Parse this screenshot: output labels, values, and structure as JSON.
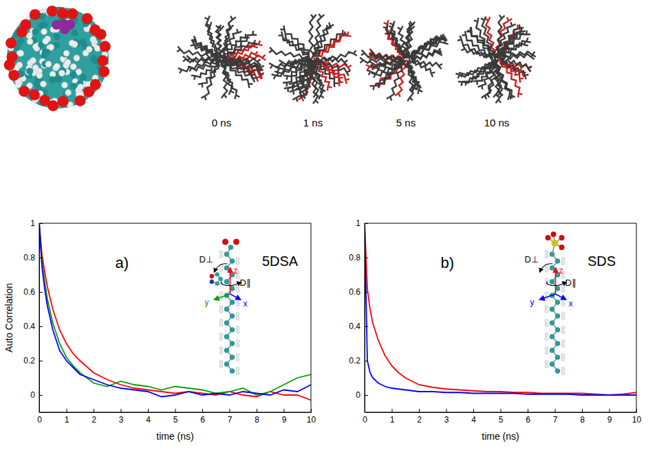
{
  "chart_data": [
    {
      "type": "line",
      "title": "5DSA",
      "x_label": "time (ns)",
      "y_label": "Auto Correlation",
      "annotations": [
        "a)",
        "D⊥",
        "D∥",
        "z",
        "y",
        "x"
      ],
      "x": [
        0,
        0.1,
        0.2,
        0.3,
        0.5,
        0.75,
        1,
        1.25,
        1.5,
        2,
        2.5,
        3,
        3.5,
        4,
        4.5,
        5,
        5.5,
        6,
        6.5,
        7,
        7.5,
        8,
        8.5,
        9,
        9.5,
        10
      ],
      "series": [
        {
          "color": "#ff0000",
          "values": [
            1,
            0.82,
            0.72,
            0.63,
            0.5,
            0.38,
            0.3,
            0.24,
            0.2,
            0.13,
            0.09,
            0.06,
            0.04,
            0.03,
            0.02,
            0.01,
            0.02,
            0.01,
            0.0,
            0.02,
            0.0,
            -0.01,
            0.02,
            0.0,
            0.0,
            -0.03
          ]
        },
        {
          "color": "#00a000",
          "values": [
            1,
            0.78,
            0.66,
            0.56,
            0.42,
            0.3,
            0.22,
            0.17,
            0.13,
            0.07,
            0.05,
            0.08,
            0.06,
            0.05,
            0.03,
            0.05,
            0.04,
            0.03,
            0.01,
            0.02,
            0.04,
            0.0,
            0.02,
            0.06,
            0.1,
            0.12
          ]
        },
        {
          "color": "#0000ff",
          "values": [
            1,
            0.75,
            0.62,
            0.52,
            0.38,
            0.26,
            0.2,
            0.16,
            0.12,
            0.09,
            0.06,
            0.04,
            0.03,
            0.02,
            -0.01,
            0.0,
            0.02,
            0.0,
            0.01,
            0.0,
            0.02,
            0.01,
            0.0,
            0.03,
            0.02,
            0.06
          ]
        }
      ],
      "xlim": [
        0,
        10
      ],
      "xticks": [
        0,
        1,
        2,
        3,
        4,
        5,
        6,
        7,
        8,
        9,
        10
      ],
      "ylim": [
        -0.1,
        1
      ],
      "yticks": [
        0,
        0.2,
        0.4,
        0.6,
        0.8,
        1
      ],
      "grid": false
    },
    {
      "type": "line",
      "title": "SDS",
      "x_label": "time (ns)",
      "annotations": [
        "b)",
        "D⊥",
        "D∥",
        "z",
        "y",
        "x"
      ],
      "x": [
        0,
        0.1,
        0.2,
        0.3,
        0.5,
        0.75,
        1,
        1.25,
        1.5,
        2,
        2.5,
        3,
        3.5,
        4,
        4.5,
        5,
        5.5,
        6,
        6.5,
        7,
        7.5,
        8,
        8.5,
        9,
        9.5,
        10
      ],
      "series": [
        {
          "color": "#ff0000",
          "values": [
            1,
            0.62,
            0.5,
            0.42,
            0.32,
            0.23,
            0.17,
            0.13,
            0.1,
            0.06,
            0.045,
            0.035,
            0.03,
            0.025,
            0.02,
            0.02,
            0.015,
            0.015,
            0.01,
            0.01,
            0.01,
            0.01,
            0.005,
            0.0,
            0.005,
            0.015
          ]
        },
        {
          "color": "#0000ff",
          "values": [
            1,
            0.2,
            0.13,
            0.1,
            0.07,
            0.05,
            0.04,
            0.035,
            0.03,
            0.02,
            0.02,
            0.015,
            0.015,
            0.01,
            0.01,
            0.01,
            0.01,
            0.005,
            0.005,
            0.005,
            0.005,
            0.0,
            0.0,
            0.0,
            0.0,
            0.0
          ]
        }
      ],
      "xlim": [
        0,
        10
      ],
      "xticks": [
        0,
        1,
        2,
        3,
        4,
        5,
        6,
        7,
        8,
        9,
        10
      ],
      "ylim": [
        -0.1,
        1
      ],
      "yticks": [
        0,
        0.2,
        0.4,
        0.6,
        0.8,
        1
      ],
      "grid": false
    }
  ],
  "snapshots": [
    "0 ns",
    "1 ns",
    "5 ns",
    "10 ns"
  ]
}
